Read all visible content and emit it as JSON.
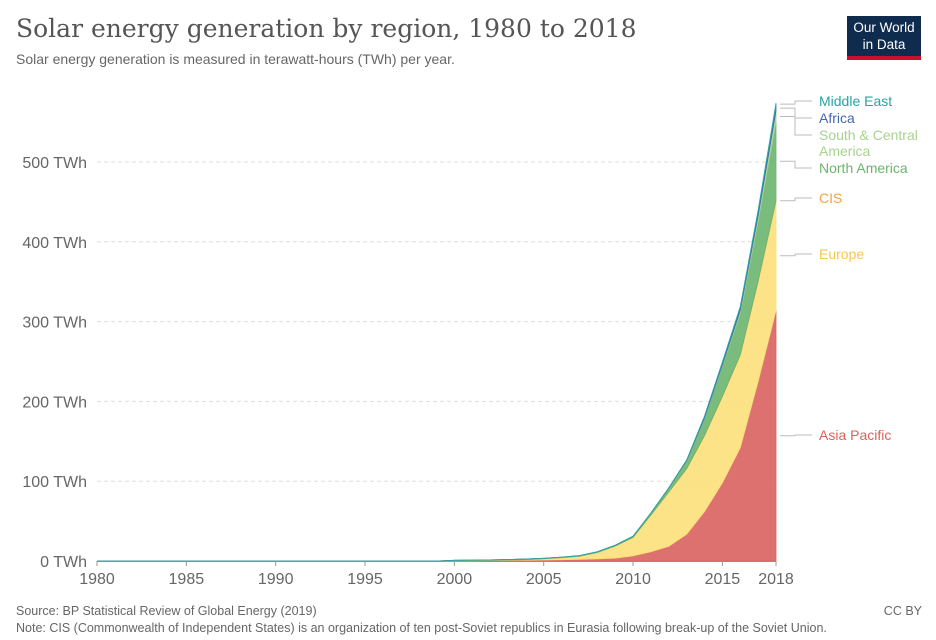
{
  "header": {
    "title": "Solar energy generation by region, 1980 to 2018",
    "subtitle": "Solar energy generation is measured in terawatt-hours (TWh) per year.",
    "logo": "Our World in Data"
  },
  "footer": {
    "source": "Source: BP Statistical Review of Global Energy (2019)",
    "note": "Note: CIS (Commonwealth of Independent States) is an organization of ten post-Soviet republics in Eurasia following break-up of the Soviet Union.",
    "license": "CC BY"
  },
  "chart_data": {
    "type": "area",
    "stacked": true,
    "title": "Solar energy generation by region, 1980 to 2018",
    "ylim": [
      0,
      580
    ],
    "xlim": [
      1980,
      2018
    ],
    "y_ticks": [
      0,
      100,
      200,
      300,
      400,
      500
    ],
    "y_tick_labels": [
      "0 TWh",
      "100 TWh",
      "200 TWh",
      "300 TWh",
      "400 TWh",
      "500 TWh"
    ],
    "x_ticks": [
      1980,
      1985,
      1990,
      1995,
      2000,
      2005,
      2010,
      2015,
      2018
    ],
    "x_tick_labels": [
      "1980",
      "1985",
      "1990",
      "1995",
      "2000",
      "2005",
      "2010",
      "2015",
      "2018"
    ],
    "grid": "horizontal dashed",
    "legend": "right, inline labels",
    "x": [
      2000,
      2001,
      2002,
      2003,
      2004,
      2005,
      2006,
      2007,
      2008,
      2009,
      2010,
      2011,
      2012,
      2013,
      2014,
      2015,
      2016,
      2017,
      2018
    ],
    "series": [
      {
        "name": "Asia Pacific",
        "color": "#d9625f",
        "values": [
          0.3,
          0.4,
          0.5,
          0.7,
          1.0,
          1.3,
          1.6,
          2.0,
          2.7,
          3.7,
          6.5,
          11.6,
          18.5,
          33.6,
          62,
          98,
          142,
          225,
          314
        ]
      },
      {
        "name": "Europe",
        "color": "#fde07a",
        "values": [
          0.1,
          0.2,
          0.3,
          0.5,
          0.8,
          1.5,
          2.6,
          4.0,
          8.0,
          15,
          23,
          46,
          68,
          82,
          95,
          108,
          116,
          125,
          137
        ]
      },
      {
        "name": "CIS",
        "color": "#f5a340",
        "values": [
          0,
          0,
          0,
          0,
          0,
          0,
          0,
          0,
          0,
          0,
          0,
          0,
          0,
          0.1,
          0.3,
          0.5,
          0.6,
          0.8,
          1.0
        ]
      },
      {
        "name": "North America",
        "color": "#6bb56f",
        "values": [
          0.5,
          0.5,
          0.6,
          0.6,
          0.6,
          0.6,
          0.6,
          0.7,
          0.9,
          1.0,
          1.5,
          2.5,
          5,
          10,
          22,
          38,
          52,
          75,
          98
        ]
      },
      {
        "name": "South & Central America",
        "color": "#a8d38f",
        "values": [
          0,
          0,
          0,
          0,
          0,
          0,
          0,
          0,
          0,
          0,
          0,
          0,
          0,
          0.1,
          0.3,
          1.5,
          3.5,
          7,
          14
        ]
      },
      {
        "name": "Africa",
        "color": "#4666b2",
        "values": [
          0,
          0,
          0,
          0,
          0,
          0,
          0,
          0,
          0,
          0,
          0,
          0.1,
          0.2,
          0.6,
          1.6,
          2.5,
          3.5,
          5,
          7
        ]
      },
      {
        "name": "Middle East",
        "color": "#2aa3a6",
        "values": [
          0,
          0,
          0,
          0,
          0,
          0,
          0,
          0,
          0,
          0,
          0,
          0,
          0,
          0.2,
          0.5,
          1.0,
          1.4,
          2,
          3
        ]
      }
    ]
  }
}
